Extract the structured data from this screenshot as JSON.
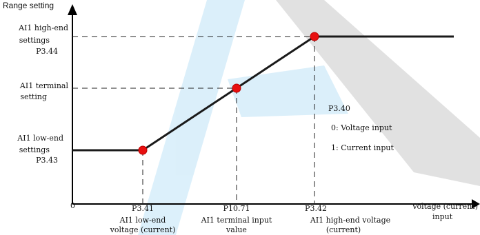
{
  "colors": {
    "curve": "#1a1a1a",
    "point": "#e81010",
    "point_outline": "#b80000",
    "dash": "#222222",
    "watermark_blue": "#bfe3f7",
    "watermark_gray": "#8f8f8f"
  },
  "diagram": {
    "y_axis_title": "Range setting",
    "origin_label": "0",
    "y_labels": {
      "high": {
        "line1": "AI1 high-end",
        "line2": "settings",
        "line3": "P3.44"
      },
      "terminal": {
        "line1": "AI1 terminal",
        "line2": "setting"
      },
      "low": {
        "line1": "AI1 low-end",
        "line2": "settings",
        "line3": "P3.43"
      }
    },
    "x_labels": {
      "low": {
        "code": "P3.41",
        "line1": "AI1 low-end",
        "line2": "voltage (current)"
      },
      "terminal": {
        "code": "P10.71",
        "line1": "AI1 terminal input",
        "line2": "value"
      },
      "high": {
        "code": "P3.42",
        "line1": "AI1 high-end voltage",
        "line2": "(current)"
      }
    },
    "x_axis_title": {
      "line1": "Voltage (current)",
      "line2": "input"
    },
    "note": {
      "code": "P3.40",
      "option0": "0: Voltage input",
      "option1": "1: Current input"
    }
  }
}
